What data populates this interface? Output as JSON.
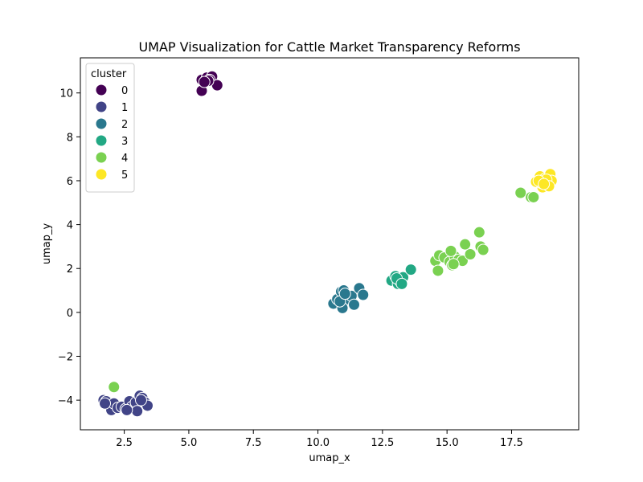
{
  "chart_data": {
    "type": "scatter",
    "title": "UMAP Visualization for Cattle Market Transparency Reforms",
    "xlabel": "umap_x",
    "ylabel": "umap_y",
    "xlim": [
      0.8,
      20.1
    ],
    "ylim": [
      -5.35,
      11.6
    ],
    "xticks": [
      2.5,
      5.0,
      7.5,
      10.0,
      12.5,
      15.0,
      17.5
    ],
    "xtick_labels": [
      "2.5",
      "5.0",
      "7.5",
      "10.0",
      "12.5",
      "15.0",
      "17.5"
    ],
    "yticks": [
      -4,
      -2,
      0,
      2,
      4,
      6,
      8,
      10
    ],
    "ytick_labels": [
      "−4",
      "−2",
      "0",
      "2",
      "4",
      "6",
      "8",
      "10"
    ],
    "grid": false,
    "legend": {
      "title": "cluster",
      "placement": "top-left"
    },
    "series": [
      {
        "name": "0",
        "color": "#440154",
        "x": [
          5.5,
          5.7,
          5.9,
          5.65,
          5.8,
          6.1,
          5.5,
          5.75,
          5.6
        ],
        "y": [
          10.6,
          10.7,
          10.75,
          10.5,
          10.6,
          10.35,
          10.1,
          10.55,
          10.5
        ]
      },
      {
        "name": "1",
        "color": "#414487",
        "x": [
          1.7,
          1.8,
          2.0,
          2.1,
          2.25,
          2.4,
          2.55,
          2.7,
          2.8,
          2.95,
          3.1,
          3.2,
          3.3,
          3.4,
          3.0,
          2.6,
          1.75,
          3.15
        ],
        "y": [
          -4.0,
          -4.05,
          -4.45,
          -4.15,
          -4.35,
          -4.3,
          -4.4,
          -4.05,
          -4.3,
          -4.1,
          -3.8,
          -3.9,
          -4.1,
          -4.25,
          -4.5,
          -4.45,
          -4.15,
          -4.0
        ]
      },
      {
        "name": "2",
        "color": "#2a788e",
        "x": [
          10.6,
          10.75,
          10.9,
          11.0,
          11.1,
          11.2,
          11.3,
          11.4,
          11.6,
          11.75,
          10.95,
          10.85,
          11.05
        ],
        "y": [
          0.4,
          0.6,
          0.95,
          1.0,
          0.7,
          0.6,
          0.75,
          0.35,
          1.1,
          0.8,
          0.2,
          0.5,
          0.85
        ]
      },
      {
        "name": "3",
        "color": "#22a884",
        "x": [
          12.85,
          13.0,
          13.1,
          13.2,
          13.3,
          13.6,
          13.05,
          13.25
        ],
        "y": [
          1.45,
          1.65,
          1.3,
          1.4,
          1.6,
          1.95,
          1.55,
          1.3
        ]
      },
      {
        "name": "4",
        "color": "#7ad151",
        "x": [
          2.1,
          14.55,
          14.65,
          14.7,
          14.9,
          15.1,
          15.2,
          15.3,
          15.45,
          15.6,
          15.7,
          15.9,
          16.25,
          16.3,
          16.4,
          17.85,
          18.25,
          18.35,
          15.15,
          15.25
        ],
        "y": [
          -3.4,
          2.35,
          1.9,
          2.6,
          2.5,
          2.3,
          2.15,
          2.55,
          2.4,
          2.35,
          3.1,
          2.65,
          3.65,
          3.0,
          2.85,
          5.45,
          5.25,
          5.25,
          2.8,
          2.2
        ]
      },
      {
        "name": "5",
        "color": "#fde725",
        "x": [
          18.45,
          18.6,
          18.7,
          18.8,
          18.9,
          19.0,
          19.05,
          18.65,
          18.85,
          18.95,
          18.55,
          18.75
        ],
        "y": [
          5.95,
          6.2,
          5.7,
          6.1,
          5.8,
          6.3,
          6.0,
          5.9,
          6.05,
          5.75,
          6.0,
          5.85
        ]
      }
    ]
  }
}
